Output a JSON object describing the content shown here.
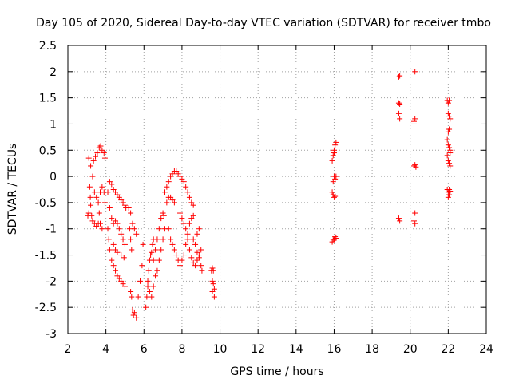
{
  "chart_data": {
    "type": "scatter",
    "title": "Day 105 of 2020, Sidereal Day-to-day VTEC variation (SDTVAR) for receiver tmbo",
    "xlabel": "GPS time / hours",
    "ylabel": "SDTVAR / TECUs",
    "xlim": [
      2,
      24
    ],
    "ylim": [
      -3,
      2.5
    ],
    "xticks": [
      "2",
      "4",
      "6",
      "8",
      "10",
      "12",
      "14",
      "16",
      "18",
      "20",
      "22",
      "24"
    ],
    "yticks": [
      "2.5",
      "2",
      "1.5",
      "1",
      "0.5",
      "0",
      "-0.5",
      "-1",
      "-1.5",
      "-2",
      "-2.5",
      "-3"
    ],
    "grid": true,
    "marker": "+",
    "color": "#ff0000",
    "series": [
      {
        "name": "SDTVAR",
        "points": [
          [
            3.1,
            0.35
          ],
          [
            3.2,
            0.2
          ],
          [
            3.3,
            0.0
          ],
          [
            3.35,
            0.3
          ],
          [
            3.45,
            0.38
          ],
          [
            3.55,
            0.45
          ],
          [
            3.65,
            0.55
          ],
          [
            3.72,
            0.58
          ],
          [
            3.8,
            0.5
          ],
          [
            3.9,
            0.45
          ],
          [
            3.95,
            0.35
          ],
          [
            3.15,
            -0.2
          ],
          [
            3.18,
            -0.4
          ],
          [
            3.2,
            -0.55
          ],
          [
            3.25,
            -0.75
          ],
          [
            3.3,
            -0.85
          ],
          [
            3.4,
            -0.9
          ],
          [
            3.5,
            -0.95
          ],
          [
            3.6,
            -0.9
          ],
          [
            3.1,
            -0.7
          ],
          [
            3.05,
            -0.75
          ],
          [
            3.6,
            -0.5
          ],
          [
            3.7,
            -0.3
          ],
          [
            3.8,
            -0.2
          ],
          [
            3.9,
            -0.3
          ],
          [
            3.95,
            -0.5
          ],
          [
            3.65,
            -0.7
          ],
          [
            3.7,
            -0.9
          ],
          [
            3.8,
            -1.0
          ],
          [
            3.4,
            -0.3
          ],
          [
            3.5,
            -0.4
          ],
          [
            4.1,
            -0.3
          ],
          [
            4.2,
            -0.1
          ],
          [
            4.3,
            -0.15
          ],
          [
            4.4,
            -0.25
          ],
          [
            4.5,
            -0.3
          ],
          [
            4.6,
            -0.35
          ],
          [
            4.7,
            -0.4
          ],
          [
            4.8,
            -0.45
          ],
          [
            4.9,
            -0.5
          ],
          [
            5.0,
            -0.55
          ],
          [
            5.05,
            -0.6
          ],
          [
            4.2,
            -0.6
          ],
          [
            4.3,
            -0.8
          ],
          [
            4.4,
            -0.9
          ],
          [
            4.5,
            -0.85
          ],
          [
            4.6,
            -0.9
          ],
          [
            4.7,
            -1.0
          ],
          [
            4.8,
            -1.1
          ],
          [
            4.9,
            -1.2
          ],
          [
            5.0,
            -1.3
          ],
          [
            4.1,
            -1.0
          ],
          [
            4.15,
            -1.2
          ],
          [
            4.2,
            -1.4
          ],
          [
            4.3,
            -1.6
          ],
          [
            4.4,
            -1.7
          ],
          [
            4.5,
            -1.8
          ],
          [
            4.6,
            -1.9
          ],
          [
            4.7,
            -1.95
          ],
          [
            4.8,
            -2.0
          ],
          [
            4.9,
            -2.05
          ],
          [
            5.0,
            -2.1
          ],
          [
            4.4,
            -1.3
          ],
          [
            4.5,
            -1.4
          ],
          [
            4.6,
            -1.45
          ],
          [
            4.8,
            -1.5
          ],
          [
            4.95,
            -1.55
          ],
          [
            5.2,
            -0.6
          ],
          [
            5.3,
            -0.7
          ],
          [
            5.4,
            -0.9
          ],
          [
            5.5,
            -1.0
          ],
          [
            5.6,
            -1.1
          ],
          [
            5.25,
            -1.0
          ],
          [
            5.3,
            -1.2
          ],
          [
            5.35,
            -1.4
          ],
          [
            5.3,
            -2.2
          ],
          [
            5.35,
            -2.3
          ],
          [
            5.4,
            -2.55
          ],
          [
            5.45,
            -2.65
          ],
          [
            5.5,
            -2.6
          ],
          [
            5.6,
            -2.7
          ],
          [
            5.7,
            -2.3
          ],
          [
            5.8,
            -2.0
          ],
          [
            5.9,
            -1.7
          ],
          [
            5.95,
            -1.3
          ],
          [
            6.1,
            -2.5
          ],
          [
            6.15,
            -2.3
          ],
          [
            6.2,
            -2.1
          ],
          [
            6.25,
            -1.8
          ],
          [
            6.3,
            -1.6
          ],
          [
            6.35,
            -1.5
          ],
          [
            6.4,
            -1.45
          ],
          [
            6.45,
            -1.3
          ],
          [
            6.5,
            -1.2
          ],
          [
            6.2,
            -2.0
          ],
          [
            6.3,
            -2.2
          ],
          [
            6.4,
            -2.3
          ],
          [
            6.5,
            -2.1
          ],
          [
            6.6,
            -1.9
          ],
          [
            6.7,
            -1.8
          ],
          [
            6.8,
            -1.6
          ],
          [
            6.9,
            -1.4
          ],
          [
            7.0,
            -1.2
          ],
          [
            7.1,
            -1.0
          ],
          [
            6.5,
            -1.6
          ],
          [
            6.6,
            -1.4
          ],
          [
            6.7,
            -1.2
          ],
          [
            6.8,
            -1.0
          ],
          [
            6.9,
            -0.8
          ],
          [
            7.0,
            -0.7
          ],
          [
            7.05,
            -0.75
          ],
          [
            7.1,
            -0.3
          ],
          [
            7.2,
            -0.2
          ],
          [
            7.3,
            -0.1
          ],
          [
            7.4,
            0.0
          ],
          [
            7.5,
            0.05
          ],
          [
            7.6,
            0.1
          ],
          [
            7.7,
            0.1
          ],
          [
            7.8,
            0.05
          ],
          [
            7.9,
            0.0
          ],
          [
            8.0,
            -0.05
          ],
          [
            8.1,
            -0.1
          ],
          [
            8.2,
            -0.2
          ],
          [
            8.3,
            -0.3
          ],
          [
            8.4,
            -0.4
          ],
          [
            8.5,
            -0.5
          ],
          [
            8.6,
            -0.55
          ],
          [
            7.2,
            -0.5
          ],
          [
            7.3,
            -0.4
          ],
          [
            7.4,
            -0.4
          ],
          [
            7.5,
            -0.45
          ],
          [
            7.6,
            -0.5
          ],
          [
            7.3,
            -1.0
          ],
          [
            7.4,
            -1.2
          ],
          [
            7.5,
            -1.3
          ],
          [
            7.6,
            -1.4
          ],
          [
            7.7,
            -1.5
          ],
          [
            7.8,
            -1.6
          ],
          [
            7.9,
            -1.7
          ],
          [
            8.0,
            -1.6
          ],
          [
            8.1,
            -1.5
          ],
          [
            8.2,
            -1.3
          ],
          [
            8.3,
            -1.1
          ],
          [
            8.4,
            -0.9
          ],
          [
            8.5,
            -0.8
          ],
          [
            8.6,
            -0.75
          ],
          [
            7.9,
            -0.7
          ],
          [
            8.0,
            -0.8
          ],
          [
            8.1,
            -0.9
          ],
          [
            8.2,
            -1.0
          ],
          [
            8.3,
            -1.2
          ],
          [
            8.4,
            -1.4
          ],
          [
            8.5,
            -1.55
          ],
          [
            8.6,
            -1.65
          ],
          [
            8.7,
            -1.7
          ],
          [
            8.8,
            -1.6
          ],
          [
            8.9,
            -1.5
          ],
          [
            9.0,
            -1.4
          ],
          [
            8.6,
            -1.2
          ],
          [
            8.7,
            -1.3
          ],
          [
            8.8,
            -1.45
          ],
          [
            8.9,
            -1.55
          ],
          [
            9.0,
            -1.7
          ],
          [
            9.05,
            -1.8
          ],
          [
            8.8,
            -1.1
          ],
          [
            8.9,
            -1.0
          ],
          [
            9.55,
            -1.8
          ],
          [
            9.6,
            -1.75
          ],
          [
            9.65,
            -1.8
          ],
          [
            9.6,
            -2.0
          ],
          [
            9.65,
            -2.05
          ],
          [
            9.7,
            -2.15
          ],
          [
            9.6,
            -2.2
          ],
          [
            9.7,
            -2.3
          ],
          [
            15.9,
            0.3
          ],
          [
            15.95,
            0.4
          ],
          [
            16.0,
            0.5
          ],
          [
            16.05,
            0.6
          ],
          [
            16.1,
            0.65
          ],
          [
            16.0,
            0.45
          ],
          [
            15.95,
            -0.1
          ],
          [
            16.0,
            0.0
          ],
          [
            16.05,
            -0.05
          ],
          [
            16.1,
            0.0
          ],
          [
            15.9,
            -0.3
          ],
          [
            15.95,
            -0.35
          ],
          [
            16.0,
            -0.4
          ],
          [
            16.05,
            -0.38
          ],
          [
            15.9,
            -1.25
          ],
          [
            15.95,
            -1.2
          ],
          [
            16.0,
            -1.2
          ],
          [
            16.05,
            -1.15
          ],
          [
            16.1,
            -1.18
          ],
          [
            19.4,
            1.9
          ],
          [
            19.45,
            1.92
          ],
          [
            19.4,
            1.4
          ],
          [
            19.45,
            1.38
          ],
          [
            19.4,
            1.2
          ],
          [
            19.45,
            1.1
          ],
          [
            19.4,
            -0.8
          ],
          [
            19.45,
            -0.85
          ],
          [
            20.2,
            2.05
          ],
          [
            20.25,
            2.0
          ],
          [
            20.2,
            1.05
          ],
          [
            20.25,
            1.1
          ],
          [
            20.2,
            1.0
          ],
          [
            20.2,
            0.2
          ],
          [
            20.25,
            0.22
          ],
          [
            20.3,
            0.18
          ],
          [
            20.25,
            -0.7
          ],
          [
            20.2,
            -0.85
          ],
          [
            20.25,
            -0.9
          ],
          [
            21.95,
            1.45
          ],
          [
            22.0,
            1.4
          ],
          [
            22.05,
            1.45
          ],
          [
            22.0,
            1.2
          ],
          [
            22.05,
            1.15
          ],
          [
            22.1,
            1.1
          ],
          [
            22.0,
            0.85
          ],
          [
            22.05,
            0.9
          ],
          [
            21.95,
            0.7
          ],
          [
            22.0,
            0.6
          ],
          [
            22.05,
            0.55
          ],
          [
            22.1,
            0.45
          ],
          [
            22.0,
            0.3
          ],
          [
            22.05,
            0.25
          ],
          [
            22.1,
            0.2
          ],
          [
            21.95,
            0.4
          ],
          [
            22.1,
            0.5
          ],
          [
            21.95,
            -0.25
          ],
          [
            22.0,
            -0.3
          ],
          [
            22.05,
            -0.35
          ],
          [
            22.1,
            -0.28
          ],
          [
            22.0,
            -0.4
          ],
          [
            22.05,
            -0.25
          ]
        ]
      }
    ]
  }
}
